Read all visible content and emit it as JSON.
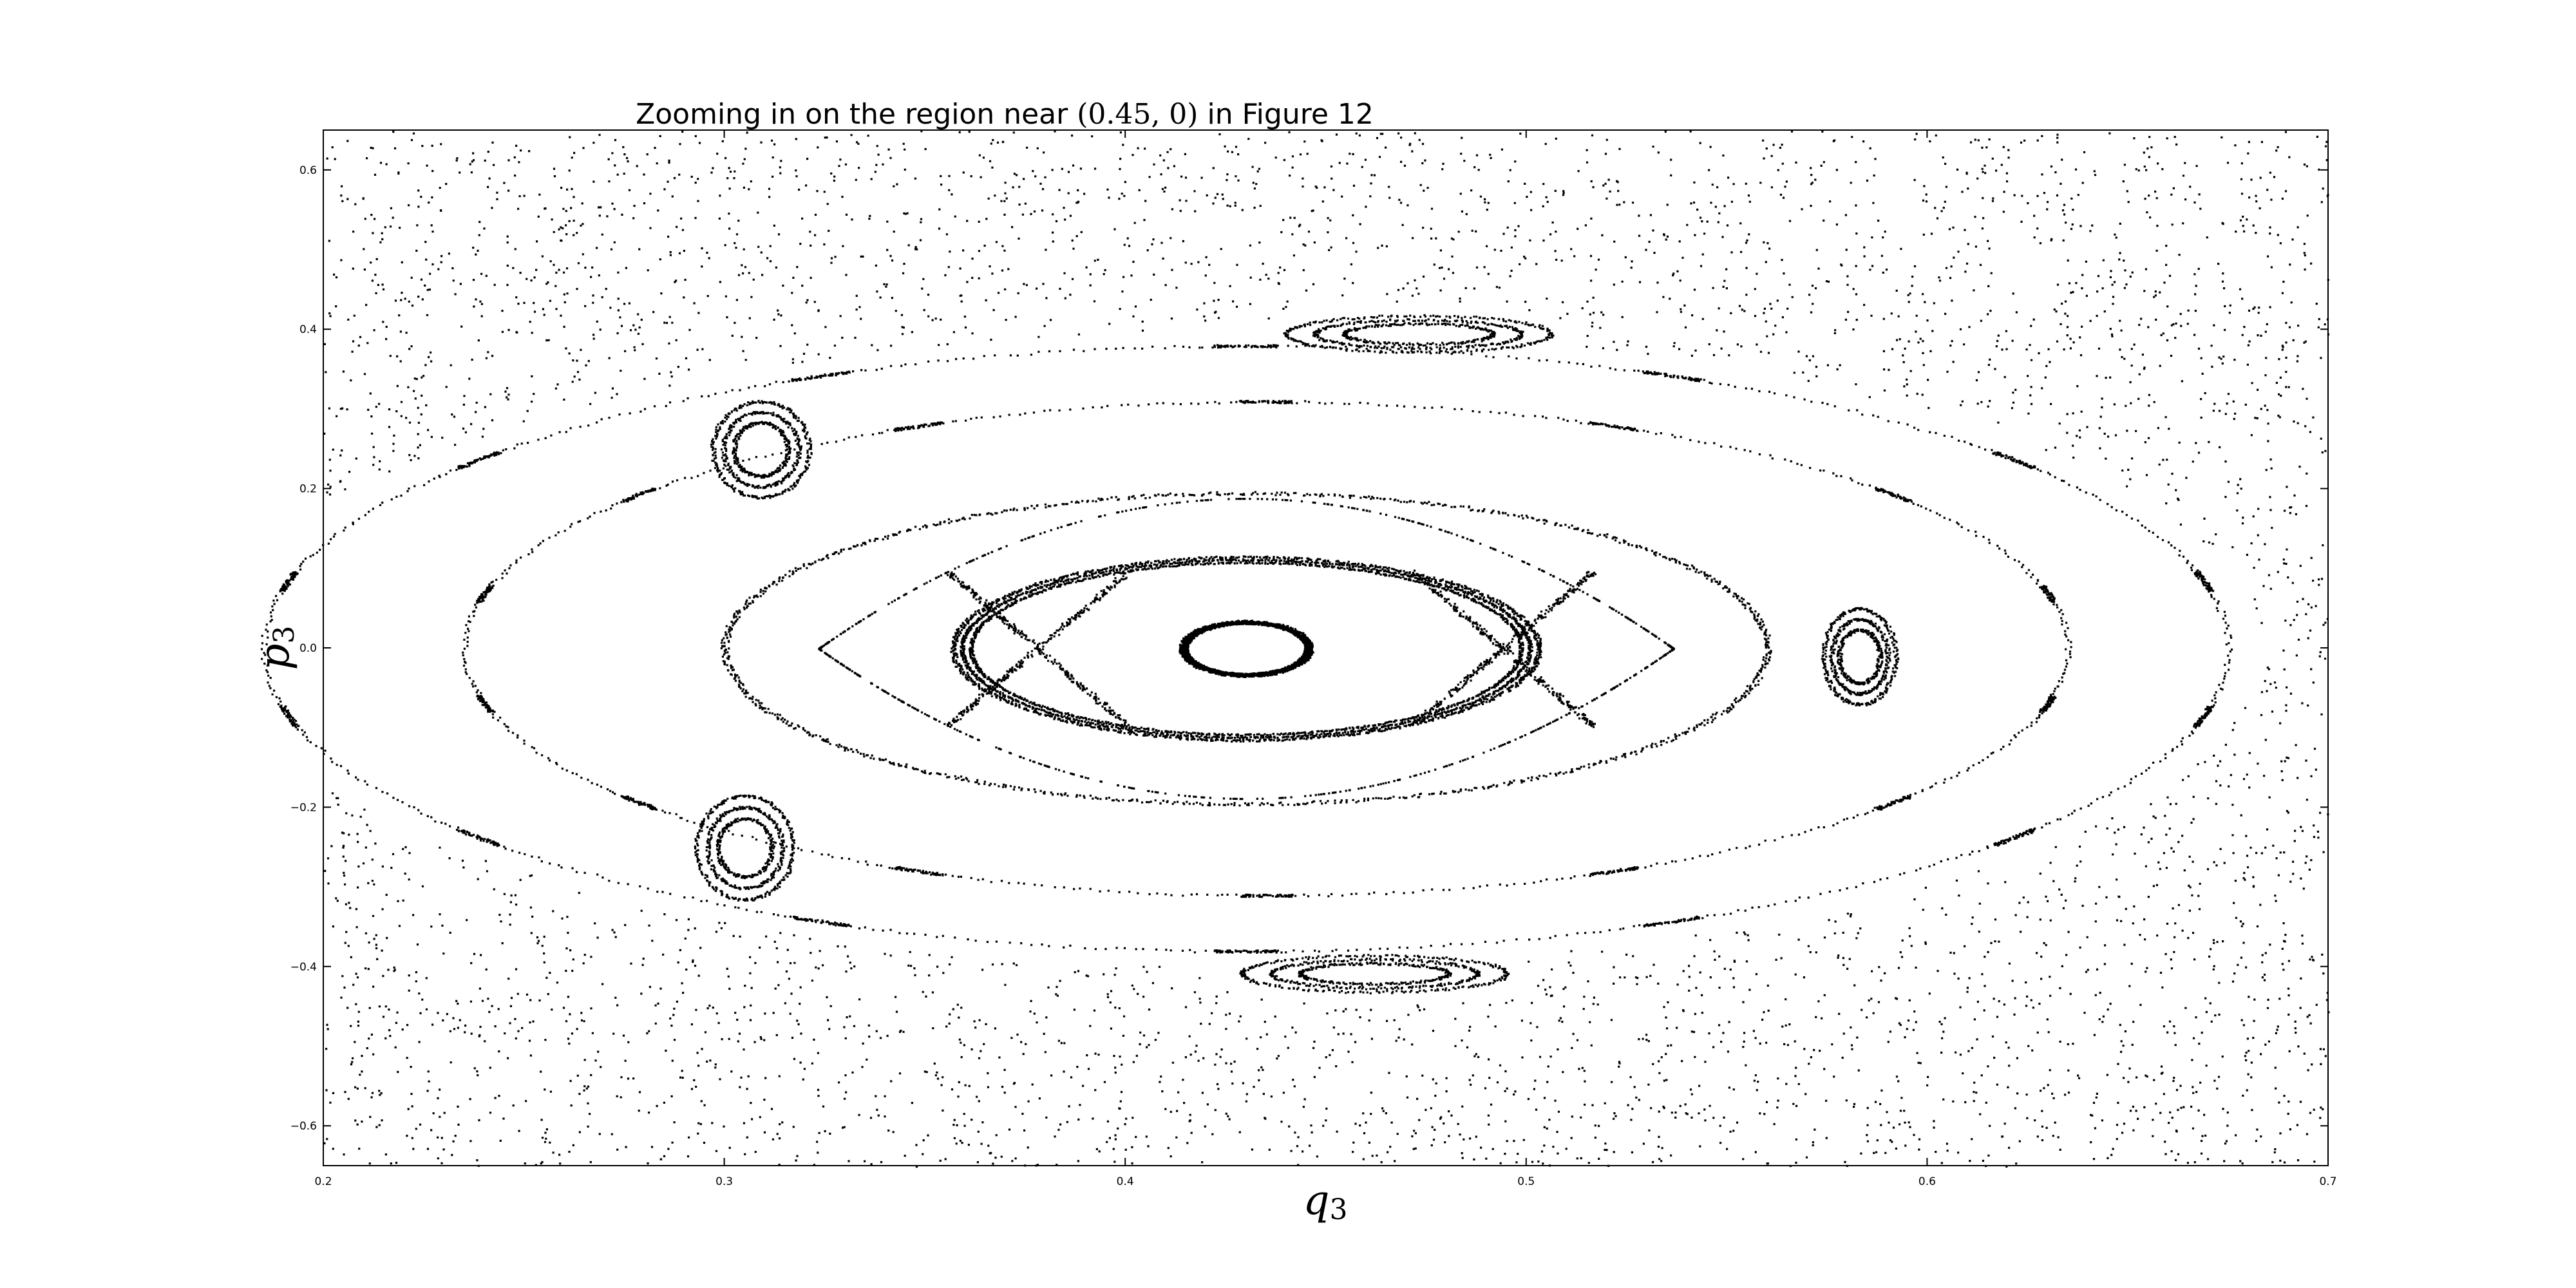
{
  "chart_data": {
    "type": "scatter",
    "title": {
      "prefix": "Zooming in on the region near ",
      "math": "(0.45, 0)",
      "suffix": " in Figure 12"
    },
    "xlabel": {
      "symbol": "q",
      "subscript": "3"
    },
    "ylabel": {
      "symbol": "p",
      "subscript": "3"
    },
    "xlim": [
      0.2,
      0.7
    ],
    "ylim": [
      -0.65,
      0.65
    ],
    "xticks": [
      "0.2",
      "0.3",
      "0.4",
      "0.5",
      "0.6",
      "0.7"
    ],
    "yticks": [
      "−0.6",
      "−0.4",
      "−0.2",
      "0.0",
      "0.2",
      "0.4",
      "0.6"
    ],
    "marker_color": "#000000",
    "grid": false,
    "series": [
      {
        "kind": "chaotic_sea",
        "approx_point_count": 6000
      },
      {
        "kind": "invariant_curve",
        "center": [
          0.43,
          0.0
        ],
        "a": 0.016,
        "b": 0.034
      },
      {
        "kind": "invariant_curve",
        "center": [
          0.43,
          0.0
        ],
        "a": 0.073,
        "b": 0.115
      },
      {
        "kind": "island_chain_outer_boundary",
        "center": [
          0.43,
          0.0
        ],
        "a": 0.13,
        "b": 0.195,
        "hyperbolic_points": [
          [
            0.378,
            0.0
          ],
          [
            0.494,
            0.0
          ]
        ]
      },
      {
        "kind": "invariant_curve",
        "center": [
          0.435,
          0.0
        ],
        "a": 0.2,
        "b": 0.31
      },
      {
        "kind": "invariant_curve",
        "center": [
          0.43,
          0.0
        ],
        "a": 0.245,
        "b": 0.38
      },
      {
        "kind": "islands",
        "center": [
          0.309,
          0.25
        ],
        "a": 0.012,
        "b": 0.06
      },
      {
        "kind": "islands",
        "center": [
          0.305,
          -0.25
        ],
        "a": 0.012,
        "b": 0.065
      },
      {
        "kind": "islands",
        "center": [
          0.583,
          -0.01
        ],
        "a": 0.009,
        "b": 0.06
      },
      {
        "kind": "islands",
        "center": [
          0.473,
          0.395
        ],
        "a": 0.033,
        "b": 0.023
      },
      {
        "kind": "islands",
        "center": [
          0.462,
          -0.408
        ],
        "a": 0.033,
        "b": 0.023
      }
    ]
  }
}
